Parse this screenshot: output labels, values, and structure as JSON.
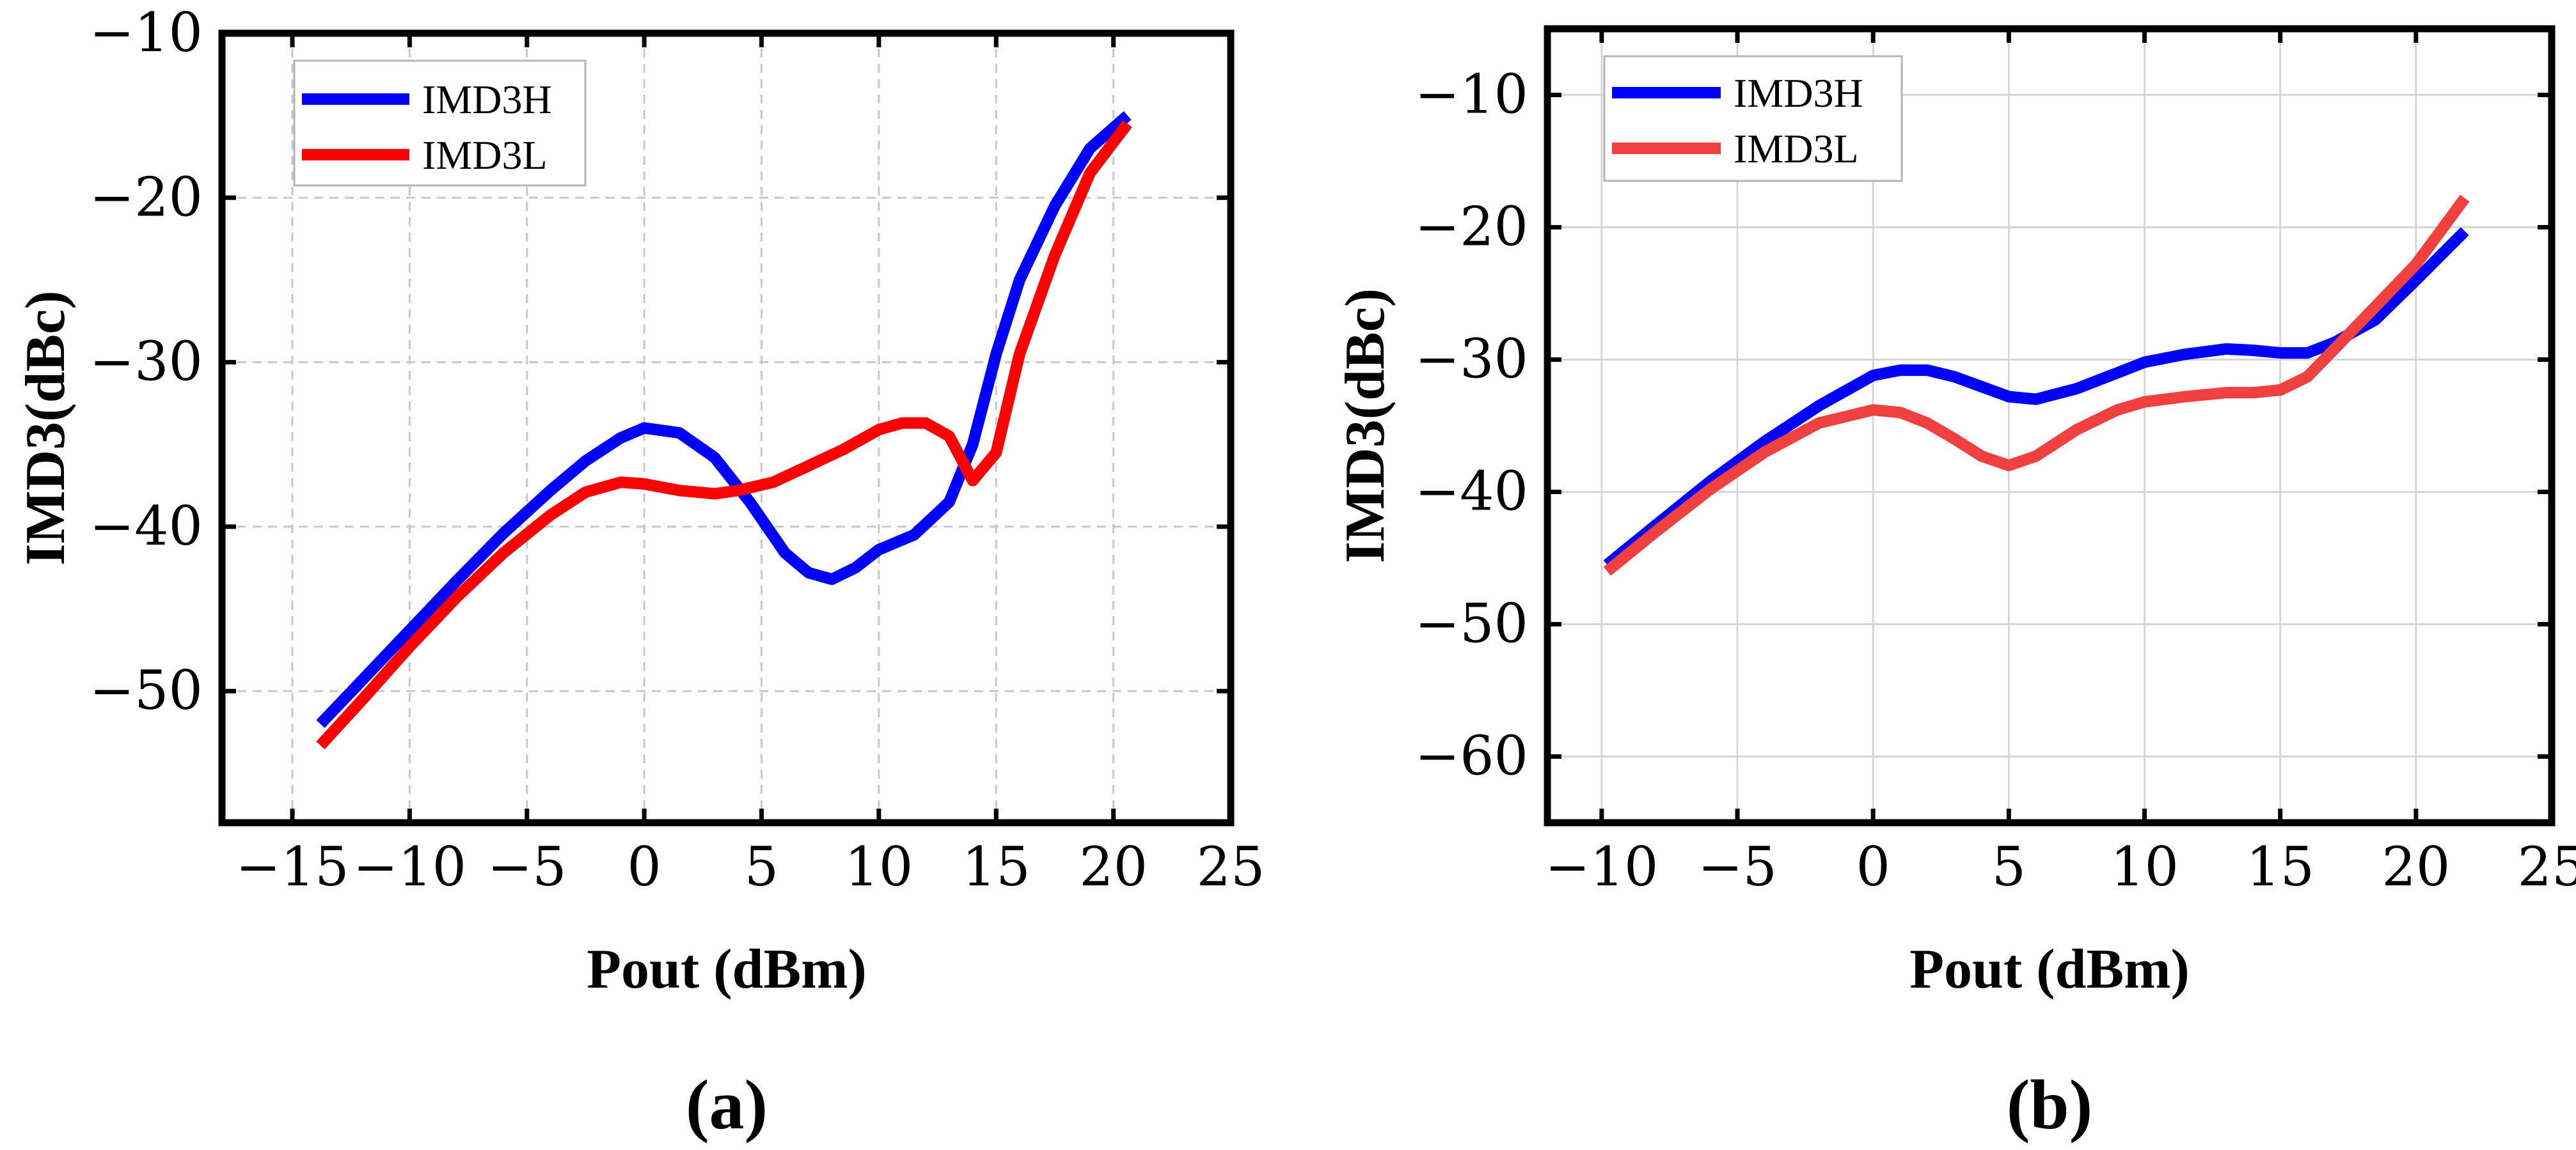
{
  "chart_data": [
    {
      "type": "line",
      "panel_label": "(a)",
      "xlabel": "Pout (dBm)",
      "ylabel": "IMD3(dBc)",
      "xlim": [
        -18,
        25
      ],
      "ylim": [
        -58,
        -10
      ],
      "xticks": [
        -15,
        -10,
        -5,
        0,
        5,
        10,
        15,
        20,
        25
      ],
      "xtick_labels": [
        "−15",
        "−10",
        "−5",
        "0",
        "5",
        "10",
        "15",
        "20",
        "25"
      ],
      "yticks": [
        -50,
        -40,
        -30,
        -20,
        -10
      ],
      "ytick_labels": [
        "−50",
        "−40",
        "−30",
        "−20",
        "−10"
      ],
      "grid": "dashed",
      "legend_position": "top-left",
      "series": [
        {
          "name": "IMD3H",
          "color": "#0000ff",
          "x": [
            -13.8,
            -12,
            -10,
            -8,
            -6,
            -4,
            -2.5,
            -1,
            0,
            1.5,
            3,
            4.5,
            6,
            7,
            8,
            9,
            10,
            11.5,
            13,
            14,
            15,
            16,
            17.5,
            19,
            20.6
          ],
          "y": [
            -52,
            -49.3,
            -46.3,
            -43.3,
            -40.4,
            -37.8,
            -36,
            -34.6,
            -34,
            -34.3,
            -35.8,
            -38.5,
            -41.6,
            -42.8,
            -43.2,
            -42.5,
            -41.4,
            -40.5,
            -38.5,
            -35,
            -29.5,
            -25,
            -20.5,
            -17,
            -15
          ]
        },
        {
          "name": "IMD3L",
          "color": "#ff0000",
          "x": [
            -13.8,
            -12,
            -10,
            -8,
            -6,
            -4,
            -2.5,
            -1,
            0,
            1.5,
            3,
            4,
            5.5,
            7,
            8.5,
            10,
            11,
            12,
            13,
            14,
            15,
            16,
            17.5,
            19,
            20.6
          ],
          "y": [
            -53.3,
            -50.5,
            -47.3,
            -44.3,
            -41.6,
            -39.3,
            -37.9,
            -37.3,
            -37.4,
            -37.8,
            -38,
            -37.8,
            -37.3,
            -36.3,
            -35.3,
            -34.1,
            -33.7,
            -33.7,
            -34.5,
            -37.2,
            -35.5,
            -29.5,
            -23.5,
            -18.5,
            -15.5
          ]
        }
      ]
    },
    {
      "type": "line",
      "panel_label": "(b)",
      "xlabel": "Pout (dBm)",
      "ylabel": "IMD3(dBc)",
      "xlim": [
        -12,
        25
      ],
      "ylim": [
        -65,
        -5
      ],
      "xticks": [
        -10,
        -5,
        0,
        5,
        10,
        15,
        20,
        25
      ],
      "xtick_labels": [
        "−10",
        "−5",
        "0",
        "5",
        "10",
        "15",
        "20",
        "25"
      ],
      "yticks": [
        -60,
        -50,
        -40,
        -30,
        -20,
        -10
      ],
      "ytick_labels": [
        "−60",
        "−50",
        "−40",
        "−30",
        "−20",
        "−10"
      ],
      "grid": "solid",
      "legend_position": "top-left",
      "series": [
        {
          "name": "IMD3H",
          "color": "#0000ff",
          "x": [
            -9.8,
            -8,
            -6,
            -4,
            -2,
            0,
            1,
            2,
            3,
            5,
            6,
            7.5,
            9,
            10,
            11.5,
            13,
            14,
            15,
            16,
            17,
            18.5,
            20,
            21.8
          ],
          "y": [
            -45.5,
            -42.5,
            -39.2,
            -36.2,
            -33.5,
            -31.2,
            -30.8,
            -30.8,
            -31.3,
            -32.8,
            -33,
            -32.2,
            -31,
            -30.2,
            -29.6,
            -29.2,
            -29.3,
            -29.5,
            -29.5,
            -28.7,
            -27,
            -24,
            -20.3
          ]
        },
        {
          "name": "IMD3L",
          "color": "#f04040",
          "x": [
            -9.8,
            -8,
            -6,
            -4,
            -2,
            0,
            1,
            2,
            3,
            4,
            5,
            6,
            7.5,
            9,
            10,
            11.5,
            13,
            14,
            15,
            16,
            17,
            18.5,
            20,
            21.8
          ],
          "y": [
            -46,
            -43,
            -39.8,
            -37,
            -34.8,
            -33.8,
            -34,
            -34.8,
            -36,
            -37.3,
            -38,
            -37.3,
            -35.3,
            -33.8,
            -33.2,
            -32.8,
            -32.5,
            -32.5,
            -32.3,
            -31.3,
            -29.2,
            -26,
            -22.8,
            -17.8
          ]
        }
      ]
    }
  ]
}
